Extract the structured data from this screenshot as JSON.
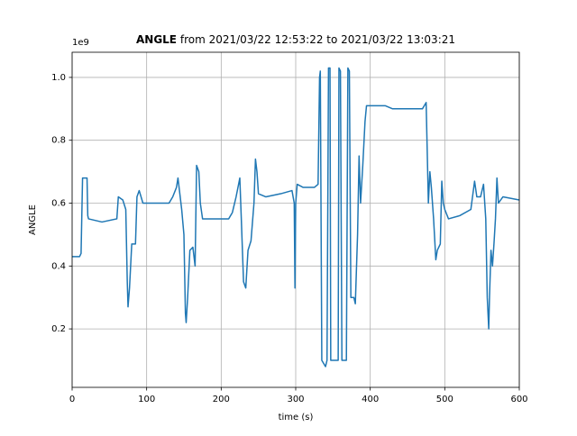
{
  "chart_data": {
    "type": "line",
    "title": {
      "bold": "ANGLE",
      "text": "from 2021/03/22 12:53:22 to 2021/03/22 13:03:21"
    },
    "xlabel": "time (s)",
    "ylabel": "ANGLE",
    "y_offset_text": "1e9",
    "x": [
      0,
      10,
      12,
      14,
      20,
      21,
      22,
      40,
      60,
      62,
      68,
      72,
      74,
      75,
      77,
      80,
      85,
      87,
      90,
      95,
      100,
      130,
      135,
      140,
      142,
      147,
      150,
      152,
      153,
      155,
      158,
      162,
      165,
      167,
      170,
      172,
      175,
      180,
      210,
      215,
      220,
      225,
      227,
      230,
      233,
      236,
      240,
      244,
      246,
      248,
      250,
      260,
      280,
      295,
      298,
      299,
      300,
      302,
      310,
      325,
      330,
      332,
      333,
      335,
      340,
      342,
      344,
      346,
      347,
      355,
      357,
      358,
      360,
      362,
      368,
      370,
      372,
      374,
      378,
      380,
      383,
      385,
      387,
      390,
      393,
      395,
      420,
      430,
      470,
      475,
      478,
      480,
      482,
      485,
      488,
      490,
      494,
      496,
      498,
      500,
      505,
      520,
      535,
      540,
      543,
      548,
      552,
      555,
      557,
      559,
      560,
      562,
      564,
      566,
      568,
      570,
      572,
      578,
      600
    ],
    "values": [
      0.43,
      0.43,
      0.44,
      0.68,
      0.68,
      0.56,
      0.55,
      0.54,
      0.55,
      0.62,
      0.61,
      0.58,
      0.35,
      0.27,
      0.33,
      0.47,
      0.47,
      0.62,
      0.64,
      0.6,
      0.6,
      0.6,
      0.62,
      0.65,
      0.68,
      0.58,
      0.5,
      0.25,
      0.22,
      0.3,
      0.45,
      0.46,
      0.4,
      0.72,
      0.7,
      0.6,
      0.55,
      0.55,
      0.55,
      0.57,
      0.62,
      0.68,
      0.55,
      0.35,
      0.33,
      0.45,
      0.48,
      0.6,
      0.74,
      0.7,
      0.63,
      0.62,
      0.63,
      0.64,
      0.6,
      0.33,
      0.6,
      0.66,
      0.65,
      0.65,
      0.66,
      1.0,
      1.02,
      0.1,
      0.08,
      0.1,
      1.03,
      1.03,
      0.1,
      0.1,
      0.1,
      1.03,
      1.02,
      0.1,
      0.1,
      1.03,
      1.02,
      0.3,
      0.3,
      0.28,
      0.5,
      0.75,
      0.6,
      0.72,
      0.86,
      0.91,
      0.91,
      0.9,
      0.9,
      0.92,
      0.6,
      0.7,
      0.65,
      0.55,
      0.42,
      0.45,
      0.47,
      0.67,
      0.6,
      0.58,
      0.55,
      0.56,
      0.58,
      0.67,
      0.62,
      0.62,
      0.66,
      0.55,
      0.3,
      0.2,
      0.3,
      0.45,
      0.4,
      0.47,
      0.55,
      0.68,
      0.6,
      0.62,
      0.61
    ],
    "color": "#1f77b4",
    "xlim": [
      0,
      600
    ],
    "xticks": [
      0,
      100,
      200,
      300,
      400,
      500,
      600
    ],
    "ylim": [
      0.014,
      1.08
    ],
    "yticks": [
      0.2,
      0.4,
      0.6,
      0.8,
      {
        "value": 1.0,
        "label": "1.0"
      }
    ],
    "grid": true
  }
}
